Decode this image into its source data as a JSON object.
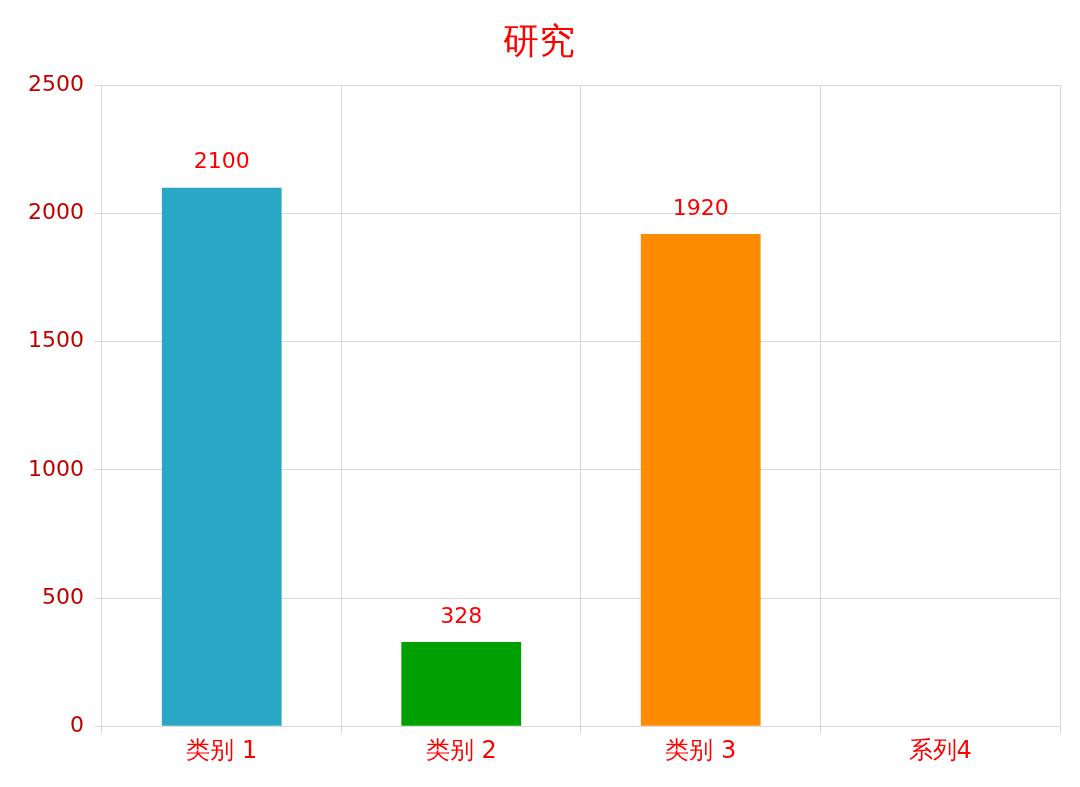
{
  "chart_data": {
    "type": "bar",
    "title": "研究",
    "categories": [
      "类别 1",
      "类别 2",
      "类别 3",
      "系列4"
    ],
    "values": [
      2100,
      328,
      1920,
      null
    ],
    "colors": [
      "#2aa7c4",
      "#00a000",
      "#ff8c00",
      "#888888"
    ],
    "ylim": [
      0,
      2500
    ],
    "yticks": [
      0,
      500,
      1000,
      1500,
      2000,
      2500
    ],
    "grid": true,
    "data_labels": true,
    "legend": false
  }
}
